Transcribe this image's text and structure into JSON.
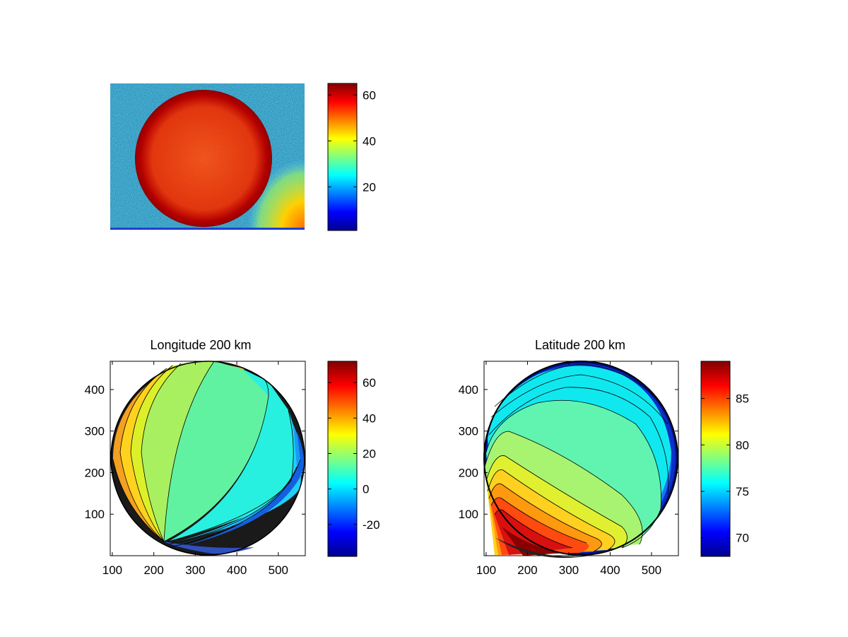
{
  "chart_data": [
    {
      "type": "heatmap",
      "title": "",
      "description_of_content": "",
      "image_note": "",
      "xlabel": "",
      "ylabel": "",
      "colormap": "jet",
      "colorbar": {
        "range": [
          1,
          65
        ],
        "ticks": [
          20,
          40,
          60
        ],
        "tick_labels": [
          "20",
          "40",
          "60"
        ]
      },
      "annotation": "",
      "axis_ticks_visible": false
    },
    {
      "type": "heatmap",
      "title": "Longitude 200 km",
      "xlabel": "",
      "ylabel": "",
      "xlim": [
        95,
        565
      ],
      "ylim": [
        0,
        468
      ],
      "x_ticks": [
        100,
        200,
        300,
        400,
        500
      ],
      "x_tick_labels": [
        "100",
        "200",
        "300",
        "400",
        "500"
      ],
      "y_ticks": [
        100,
        200,
        300,
        400
      ],
      "y_tick_labels": [
        "100",
        "200",
        "300",
        "400"
      ],
      "y_reversed": false,
      "colormap": "jet",
      "contours": true,
      "disk": {
        "cx": 330,
        "cy": 234,
        "r": 233
      },
      "colorbar": {
        "range": [
          -38,
          72
        ],
        "ticks": [
          -20,
          0,
          20,
          40,
          60
        ],
        "tick_labels": [
          "-20",
          "0",
          "20",
          "40",
          "60"
        ]
      }
    },
    {
      "type": "heatmap",
      "title": "Latitude 200 km",
      "xlabel": "",
      "ylabel": "",
      "xlim": [
        95,
        565
      ],
      "ylim": [
        0,
        468
      ],
      "x_ticks": [
        100,
        200,
        300,
        400,
        500
      ],
      "x_tick_labels": [
        "100",
        "200",
        "300",
        "400",
        "500"
      ],
      "y_ticks": [
        100,
        200,
        300,
        400
      ],
      "y_tick_labels": [
        "100",
        "200",
        "300",
        "400"
      ],
      "colormap": "jet",
      "contours": true,
      "disk": {
        "cx": 330,
        "cy": 234,
        "r": 233
      },
      "colorbar": {
        "range": [
          68,
          89
        ],
        "ticks": [
          70,
          75,
          80,
          85
        ],
        "tick_labels": [
          "70",
          "75",
          "80",
          "85"
        ]
      }
    }
  ]
}
